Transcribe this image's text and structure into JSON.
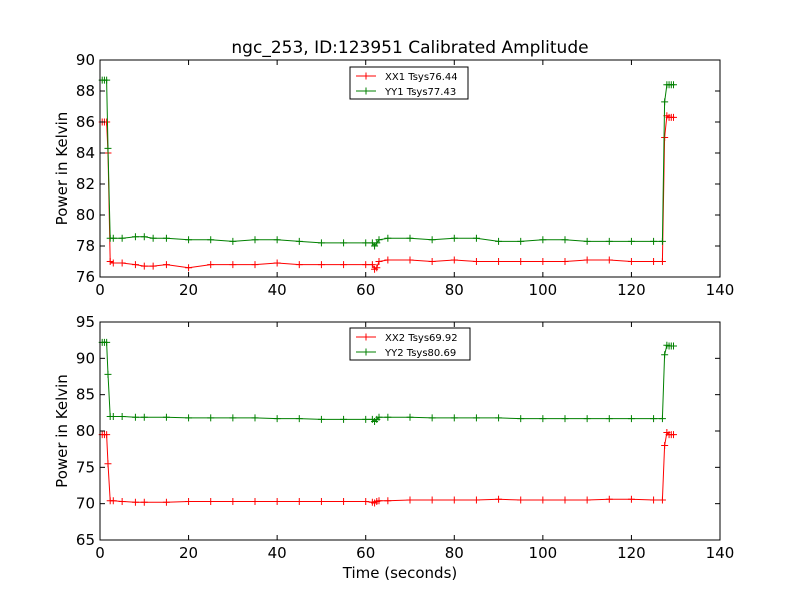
{
  "title": "ngc_253, ID:123951 Calibrated Amplitude",
  "chart_data": [
    {
      "type": "line",
      "title": "ngc_253, ID:123951 Calibrated Amplitude",
      "xlabel": "",
      "ylabel": "Power in Kelvin",
      "xlim": [
        0,
        140
      ],
      "ylim": [
        76,
        90
      ],
      "xticks": [
        "0",
        "20",
        "40",
        "60",
        "80",
        "100",
        "120",
        "140"
      ],
      "yticks": [
        "76",
        "78",
        "80",
        "82",
        "84",
        "86",
        "88",
        "90"
      ],
      "grid": false,
      "legend_position": "top-center",
      "series": [
        {
          "name": "XX1 Tsys76.44",
          "color": "#ff0000",
          "x": [
            0.5,
            1.0,
            1.5,
            1.8,
            2.3,
            3,
            5,
            8,
            10,
            12,
            15,
            20,
            25,
            30,
            35,
            40,
            45,
            50,
            55,
            60,
            61.5,
            62.0,
            62.5,
            63,
            65,
            70,
            75,
            80,
            85,
            90,
            95,
            100,
            105,
            110,
            115,
            120,
            125,
            127.0,
            127.5,
            128.0,
            128.5,
            129.0,
            129.5
          ],
          "y": [
            86.0,
            86.0,
            86.0,
            84.0,
            77.0,
            76.9,
            76.9,
            76.8,
            76.7,
            76.7,
            76.8,
            76.6,
            76.8,
            76.8,
            76.8,
            76.9,
            76.8,
            76.8,
            76.8,
            76.8,
            76.8,
            76.5,
            76.6,
            77.0,
            77.1,
            77.1,
            77.0,
            77.1,
            77.0,
            77.0,
            77.0,
            77.0,
            77.0,
            77.1,
            77.1,
            77.0,
            77.0,
            77.0,
            85.0,
            86.4,
            86.3,
            86.3,
            86.3
          ]
        },
        {
          "name": "YY1 Tsys77.43",
          "color": "#008000",
          "x": [
            0.5,
            1.0,
            1.5,
            1.8,
            2.3,
            3,
            5,
            8,
            10,
            12,
            15,
            20,
            25,
            30,
            35,
            40,
            45,
            50,
            55,
            60,
            61.5,
            62.0,
            62.5,
            63,
            65,
            70,
            75,
            80,
            85,
            90,
            95,
            100,
            105,
            110,
            115,
            120,
            125,
            127.0,
            127.5,
            128.0,
            128.5,
            129.0,
            129.5
          ],
          "y": [
            88.7,
            88.7,
            88.7,
            84.3,
            78.5,
            78.5,
            78.5,
            78.6,
            78.6,
            78.5,
            78.5,
            78.4,
            78.4,
            78.3,
            78.4,
            78.4,
            78.3,
            78.2,
            78.2,
            78.2,
            78.2,
            78.0,
            78.2,
            78.4,
            78.5,
            78.5,
            78.4,
            78.5,
            78.5,
            78.3,
            78.3,
            78.4,
            78.4,
            78.3,
            78.3,
            78.3,
            78.3,
            78.3,
            87.3,
            88.4,
            88.4,
            88.4,
            88.4
          ]
        }
      ]
    },
    {
      "type": "line",
      "title": "",
      "xlabel": "Time (seconds)",
      "ylabel": "Power in Kelvin",
      "xlim": [
        0,
        140
      ],
      "ylim": [
        65,
        95
      ],
      "xticks": [
        "0",
        "20",
        "40",
        "60",
        "80",
        "100",
        "120",
        "140"
      ],
      "yticks": [
        "65",
        "70",
        "75",
        "80",
        "85",
        "90",
        "95"
      ],
      "grid": false,
      "legend_position": "top-center",
      "series": [
        {
          "name": "XX2 Tsys69.92",
          "color": "#ff0000",
          "x": [
            0.5,
            1.0,
            1.5,
            1.8,
            2.3,
            3,
            5,
            8,
            10,
            15,
            20,
            25,
            30,
            35,
            40,
            45,
            50,
            55,
            60,
            61.5,
            62.0,
            62.5,
            63,
            65,
            70,
            75,
            80,
            85,
            90,
            95,
            100,
            105,
            110,
            115,
            120,
            125,
            127.0,
            127.5,
            128.0,
            128.5,
            129.0,
            129.5
          ],
          "y": [
            79.5,
            79.5,
            79.5,
            75.5,
            70.4,
            70.4,
            70.3,
            70.2,
            70.2,
            70.2,
            70.3,
            70.3,
            70.3,
            70.3,
            70.3,
            70.3,
            70.3,
            70.3,
            70.3,
            70.2,
            70.1,
            70.3,
            70.4,
            70.4,
            70.5,
            70.5,
            70.5,
            70.5,
            70.6,
            70.5,
            70.5,
            70.5,
            70.5,
            70.6,
            70.6,
            70.5,
            70.5,
            78.0,
            79.8,
            79.5,
            79.5,
            79.5
          ]
        },
        {
          "name": "YY2 Tsys80.69",
          "color": "#008000",
          "x": [
            0.5,
            1.0,
            1.5,
            1.8,
            2.3,
            3,
            5,
            8,
            10,
            15,
            20,
            25,
            30,
            35,
            40,
            45,
            50,
            55,
            60,
            61.5,
            62.0,
            62.5,
            63,
            65,
            70,
            75,
            80,
            85,
            90,
            95,
            100,
            105,
            110,
            115,
            120,
            125,
            127.0,
            127.5,
            128.0,
            128.5,
            129.0,
            129.5
          ],
          "y": [
            92.2,
            92.2,
            92.2,
            87.8,
            82.0,
            82.0,
            82.0,
            81.9,
            81.9,
            81.9,
            81.8,
            81.8,
            81.8,
            81.8,
            81.7,
            81.7,
            81.6,
            81.6,
            81.6,
            81.6,
            81.3,
            81.6,
            81.9,
            81.9,
            81.9,
            81.8,
            81.8,
            81.8,
            81.8,
            81.7,
            81.7,
            81.7,
            81.7,
            81.7,
            81.7,
            81.7,
            81.7,
            90.5,
            91.8,
            91.7,
            91.7,
            91.7
          ]
        }
      ]
    }
  ]
}
